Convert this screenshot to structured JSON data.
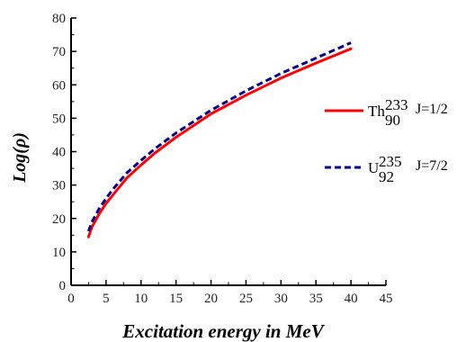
{
  "chart_data": {
    "type": "line",
    "title": "",
    "xlabel": "Excitation energy in MeV",
    "ylabel": "Log(ρ)",
    "xlim": [
      0,
      45
    ],
    "ylim": [
      0,
      80
    ],
    "x_ticks": [
      0,
      5,
      10,
      15,
      20,
      25,
      30,
      35,
      40,
      45
    ],
    "y_ticks": [
      0,
      10,
      20,
      30,
      40,
      50,
      60,
      70,
      80
    ],
    "grid": false,
    "legend_position": "right",
    "series": [
      {
        "name": "Th 233 90 J=1/2",
        "element": "Th",
        "mass": "233",
        "atomic": "90",
        "spin": "J=1/2",
        "color": "#ff0000",
        "dash": "solid",
        "x": [
          2.5,
          3,
          4,
          5,
          6,
          8,
          10,
          12,
          15,
          20,
          25,
          30,
          35,
          40
        ],
        "y": [
          14.5,
          17.5,
          21.3,
          24.5,
          27.1,
          32.2,
          36.0,
          39.6,
          44.3,
          51.3,
          56.9,
          62.0,
          66.5,
          70.8
        ]
      },
      {
        "name": "U 235 92 J=7/2",
        "element": "U",
        "mass": "235",
        "atomic": "92",
        "spin": "J=7/2",
        "color": "#00008b",
        "dash": "dashed",
        "x": [
          2.5,
          3,
          4,
          5,
          6,
          8,
          10,
          12,
          15,
          20,
          25,
          30,
          35,
          40
        ],
        "y": [
          16.2,
          19.0,
          22.9,
          26.0,
          28.8,
          33.7,
          37.4,
          40.9,
          45.6,
          52.4,
          58.2,
          63.4,
          68.0,
          72.6
        ]
      }
    ]
  }
}
